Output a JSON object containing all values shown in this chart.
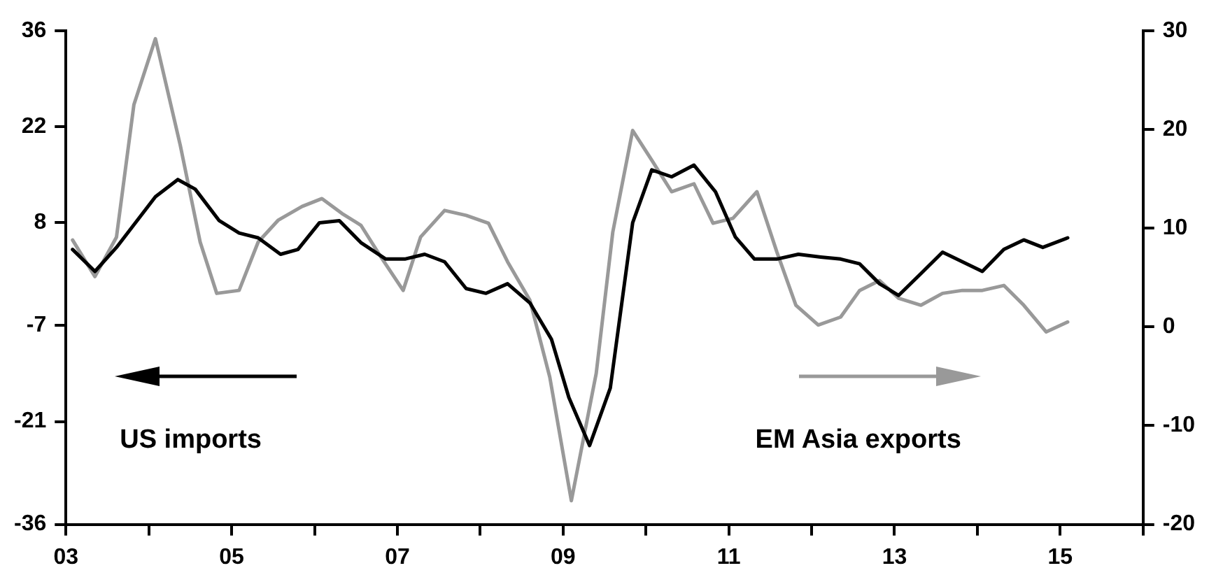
{
  "chart_data": {
    "type": "line",
    "legend": false,
    "annotations": [
      "US imports",
      "EM Asia exports"
    ],
    "grid": false,
    "marker": "none",
    "line_style": "solid",
    "xlim": [
      2003,
      2016
    ],
    "xticks": [
      {
        "value": 2003,
        "label": "03"
      },
      {
        "value": 2004,
        "label": null
      },
      {
        "value": 2005,
        "label": "05"
      },
      {
        "value": 2006,
        "label": null
      },
      {
        "value": 2007,
        "label": "07"
      },
      {
        "value": 2008,
        "label": null
      },
      {
        "value": 2009,
        "label": "09"
      },
      {
        "value": 2010,
        "label": null
      },
      {
        "value": 2011,
        "label": "11"
      },
      {
        "value": 2012,
        "label": null
      },
      {
        "value": 2013,
        "label": "13"
      },
      {
        "value": 2014,
        "label": null
      },
      {
        "value": 2015,
        "label": "15"
      },
      {
        "value": 2016,
        "label": null
      }
    ],
    "ylim": [
      -36,
      36
    ],
    "yticks": [
      -36,
      -21,
      -7,
      8,
      22,
      36
    ],
    "y2lim": [
      -20,
      30
    ],
    "y2ticks": [
      -20,
      -10,
      0,
      10,
      20,
      30
    ],
    "series": [
      {
        "color": "#000000",
        "x": [
          2003.08,
          2003.35,
          2003.61,
          2004.08,
          2004.35,
          2004.56,
          2004.85,
          2005.09,
          2005.32,
          2005.59,
          2005.8,
          2006.06,
          2006.3,
          2006.56,
          2006.86,
          2007.09,
          2007.33,
          2007.57,
          2007.83,
          2008.07,
          2008.33,
          2008.6,
          2008.86,
          2009.07,
          2009.32,
          2009.57,
          2009.84,
          2010.07,
          2010.31,
          2010.58,
          2010.84,
          2011.08,
          2011.31,
          2011.58,
          2011.84,
          2012.11,
          2012.35,
          2012.58,
          2012.82,
          2013.05,
          2013.32,
          2013.58,
          2013.82,
          2014.06,
          2014.32,
          2014.56,
          2014.79,
          2015.09
        ],
        "values": [
          4.1,
          0.9,
          4.4,
          11.8,
          14.3,
          12.9,
          8.3,
          6.5,
          5.8,
          3.4,
          4.1,
          8.0,
          8.3,
          5.1,
          2.7,
          2.7,
          3.4,
          2.3,
          -1.6,
          -2.3,
          -0.9,
          -3.7,
          -9,
          -17.5,
          -24.5,
          -16.1,
          8.0,
          15.7,
          14.7,
          16.4,
          12.5,
          5.9,
          2.7,
          2.7,
          3.4,
          3.0,
          2.7,
          2.0,
          -0.9,
          -2.6,
          0.6,
          3.7,
          2.3,
          0.9,
          4.1,
          5.5,
          4.4,
          5.8
        ]
      },
      {
        "color": "#999999",
        "axis": "y2",
        "x": [
          2003.08,
          2003.35,
          2003.61,
          2003.82,
          2004.08,
          2004.38,
          2004.62,
          2004.82,
          2005.09,
          2005.32,
          2005.56,
          2005.85,
          2006.09,
          2006.33,
          2006.56,
          2006.8,
          2007.07,
          2007.28,
          2007.57,
          2007.83,
          2008.1,
          2008.33,
          2008.6,
          2008.84,
          2009.1,
          2009.4,
          2009.6,
          2009.84,
          2010.07,
          2010.31,
          2010.58,
          2010.81,
          2011.05,
          2011.34,
          2011.58,
          2011.81,
          2012.08,
          2012.35,
          2012.58,
          2012.82,
          2013.05,
          2013.32,
          2013.58,
          2013.82,
          2014.06,
          2014.32,
          2014.56,
          2014.83,
          2015.09
        ],
        "values": [
          8.8,
          5.1,
          9.1,
          22.5,
          29.2,
          18.4,
          8.6,
          3.4,
          3.7,
          8.6,
          10.8,
          12.2,
          13.0,
          11.5,
          10.3,
          7.1,
          3.7,
          9.1,
          11.8,
          11.3,
          10.5,
          6.6,
          2.7,
          -5.1,
          -17.6,
          -4.7,
          9.6,
          19.9,
          16.9,
          13.7,
          14.5,
          10.5,
          11.0,
          13.7,
          7.6,
          2.2,
          0.2,
          1.0,
          3.7,
          4.7,
          2.9,
          2.2,
          3.4,
          3.7,
          3.7,
          4.2,
          2.2,
          -0.5,
          0.5
        ]
      }
    ]
  }
}
